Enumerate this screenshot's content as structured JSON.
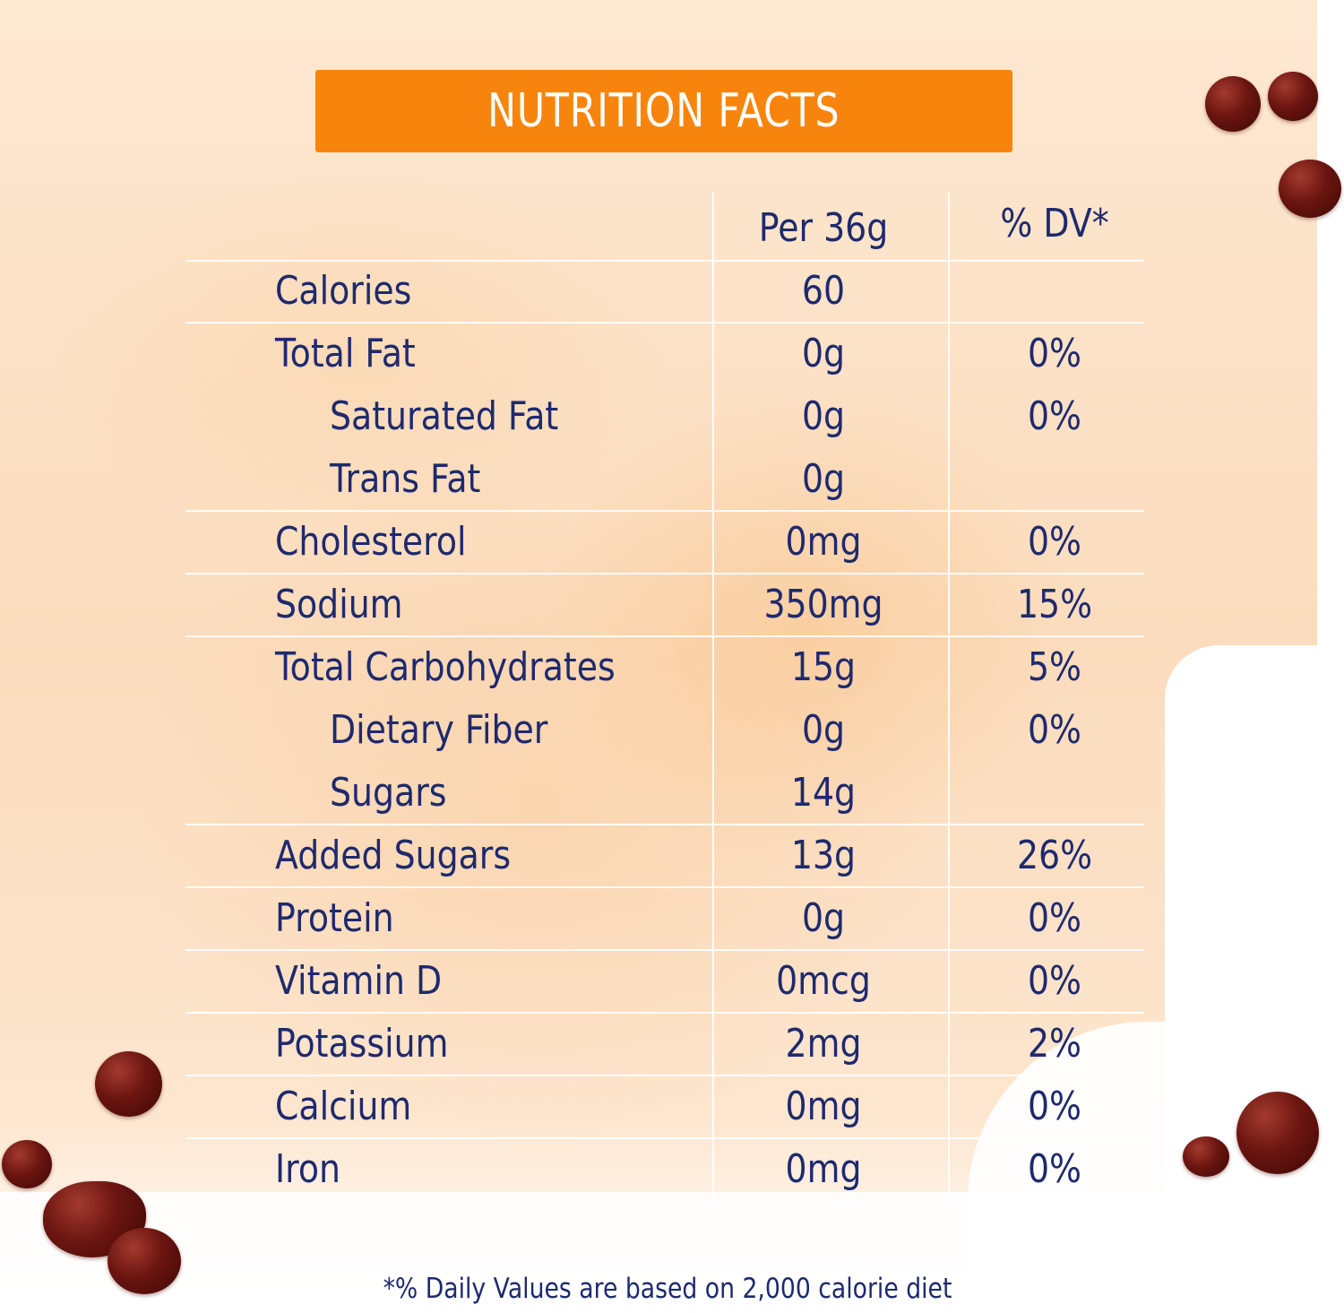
{
  "title": "NUTRITION FACTS",
  "columns": {
    "amount": "Per 36g",
    "dv": "% DV*"
  },
  "rows": [
    {
      "label": "Calories",
      "amount": "60",
      "dv": "",
      "indent": false,
      "line_above": true
    },
    {
      "label": "Total Fat",
      "amount": "0g",
      "dv": "0%",
      "indent": false,
      "line_above": true
    },
    {
      "label": "Saturated Fat",
      "amount": "0g",
      "dv": "0%",
      "indent": true,
      "line_above": false
    },
    {
      "label": "Trans Fat",
      "amount": "0g",
      "dv": "",
      "indent": true,
      "line_above": false
    },
    {
      "label": "Cholesterol",
      "amount": "0mg",
      "dv": "0%",
      "indent": false,
      "line_above": true
    },
    {
      "label": "Sodium",
      "amount": "350mg",
      "dv": "15%",
      "indent": false,
      "line_above": true
    },
    {
      "label": "Total Carbohydrates",
      "amount": "15g",
      "dv": "5%",
      "indent": false,
      "line_above": true
    },
    {
      "label": "Dietary Fiber",
      "amount": "0g",
      "dv": "0%",
      "indent": true,
      "line_above": false
    },
    {
      "label": "Sugars",
      "amount": "14g",
      "dv": "",
      "indent": true,
      "line_above": false
    },
    {
      "label": "Added Sugars",
      "amount": "13g",
      "dv": "26%",
      "indent": false,
      "line_above": true
    },
    {
      "label": "Protein",
      "amount": "0g",
      "dv": "0%",
      "indent": false,
      "line_above": true
    },
    {
      "label": "Vitamin D",
      "amount": "0mcg",
      "dv": "0%",
      "indent": false,
      "line_above": true
    },
    {
      "label": "Potassium",
      "amount": "2mg",
      "dv": "2%",
      "indent": false,
      "line_above": true
    },
    {
      "label": "Calcium",
      "amount": "0mg",
      "dv": "0%",
      "indent": false,
      "line_above": true
    },
    {
      "label": "Iron",
      "amount": "0mg",
      "dv": "0%",
      "indent": false,
      "line_above": true
    }
  ],
  "footnote": "*% Daily Values are based on 2,000 calorie diet",
  "colors": {
    "header": "#f7850d",
    "text": "#1e2a6e",
    "droplet": "#6b1510"
  }
}
